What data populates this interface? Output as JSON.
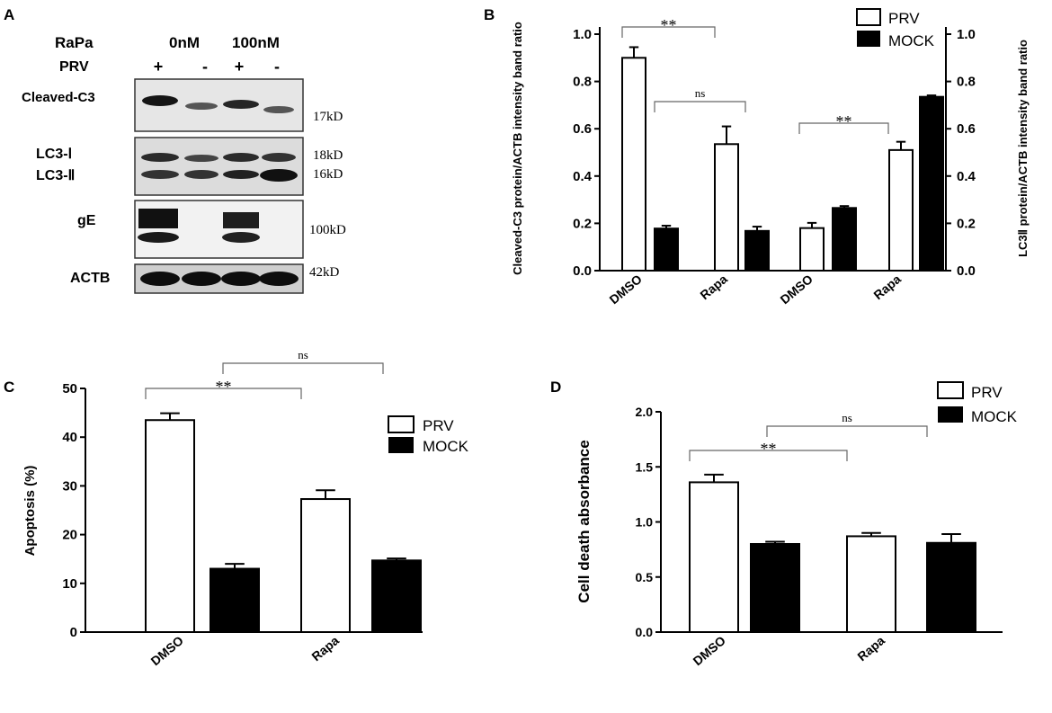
{
  "panel_labels": [
    "A",
    "B",
    "C",
    "D"
  ],
  "blot": {
    "treatment_label": "RaPa",
    "virus_label": "PRV",
    "doses": [
      "0nM",
      "100nM"
    ],
    "prv_marks": [
      "+",
      "-",
      "+",
      "-"
    ],
    "rows": [
      {
        "protein": "Cleaved-C3",
        "sizes": [
          "17kD"
        ]
      },
      {
        "protein": "LC3-Ⅰ",
        "sizes": [
          "18kD"
        ]
      },
      {
        "protein": "LC3-Ⅱ",
        "sizes": [
          "16kD"
        ]
      },
      {
        "protein": "gE",
        "sizes": [
          "100kD"
        ]
      },
      {
        "protein": "ACTB",
        "sizes": [
          "42kD"
        ]
      }
    ]
  },
  "legend": {
    "prv": "PRV",
    "mock": "MOCK",
    "prv_fill": "#ffffff",
    "mock_fill": "#000000"
  },
  "chart_data": [
    {
      "panel": "B",
      "type": "bar",
      "categories": [
        "DMSO",
        "Rapa",
        "DMSO",
        "Rapa"
      ],
      "ylabel": "Cleaved-C3 protein/ACTB intensity band ratio",
      "ylabel_right": "LC3Ⅱ protein/ACTB intensity band ratio",
      "ylim": [
        0,
        1.0
      ],
      "yticks": [
        "0.0",
        "0.2",
        "0.4",
        "0.6",
        "0.8",
        "1.0"
      ],
      "series": [
        {
          "name": "PRV",
          "values": [
            0.9,
            0.535,
            0.18,
            0.51
          ],
          "errors": [
            0.045,
            0.075,
            0.022,
            0.035
          ]
        },
        {
          "name": "MOCK",
          "values": [
            0.178,
            0.168,
            0.265,
            0.735
          ],
          "errors": [
            0.012,
            0.018,
            0.008,
            0.006
          ]
        }
      ],
      "annotations": [
        {
          "text": "**",
          "from": 0,
          "to": 1
        },
        {
          "text": "ns",
          "from": 1,
          "to": 2
        },
        {
          "text": "**",
          "from": 2,
          "to": 3
        }
      ],
      "legend_position": "top-right"
    },
    {
      "panel": "C",
      "type": "bar",
      "categories": [
        "DMSO",
        "Rapa"
      ],
      "ylabel": "Apoptosis (%)",
      "ylim": [
        0,
        50
      ],
      "yticks": [
        "0",
        "10",
        "20",
        "30",
        "40",
        "50"
      ],
      "series": [
        {
          "name": "PRV",
          "values": [
            43.5,
            27.3
          ],
          "errors": [
            1.4,
            1.8
          ]
        },
        {
          "name": "MOCK",
          "values": [
            13.0,
            14.7
          ],
          "errors": [
            1.0,
            0.4
          ]
        }
      ],
      "annotations": [
        {
          "text": "**",
          "from": "DMSO-PRV",
          "to": "Rapa-PRV"
        },
        {
          "text": "ns",
          "from": "DMSO-MOCK",
          "to": "Rapa-MOCK"
        }
      ],
      "legend_position": "right"
    },
    {
      "panel": "D",
      "type": "bar",
      "categories": [
        "DMSO",
        "Rapa"
      ],
      "ylabel": "Cell death absorbance",
      "ylim": [
        0,
        2.0
      ],
      "yticks": [
        "0.0",
        "0.5",
        "1.0",
        "1.5",
        "2.0"
      ],
      "series": [
        {
          "name": "PRV",
          "values": [
            1.36,
            0.87
          ],
          "errors": [
            0.07,
            0.03
          ]
        },
        {
          "name": "MOCK",
          "values": [
            0.8,
            0.81
          ],
          "errors": [
            0.02,
            0.08
          ]
        }
      ],
      "annotations": [
        {
          "text": "**",
          "from": "DMSO-PRV",
          "to": "Rapa-PRV"
        },
        {
          "text": "ns",
          "from": "DMSO-MOCK",
          "to": "Rapa-MOCK"
        }
      ],
      "legend_position": "top-right"
    }
  ]
}
